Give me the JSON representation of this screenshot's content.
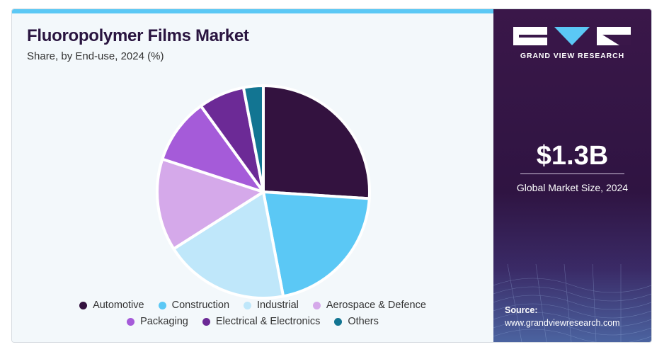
{
  "header": {
    "title": "Fluoropolymer Films Market",
    "subtitle": "Share, by End-use, 2024 (%)"
  },
  "chart_data": {
    "type": "pie",
    "title": "Fluoropolymer Films Market",
    "subtitle": "Share, by End-use, 2024 (%)",
    "categories": [
      "Automotive",
      "Construction",
      "Industrial",
      "Aerospace & Defence",
      "Packaging",
      "Electrical & Electronics",
      "Others"
    ],
    "values": [
      26,
      21,
      19,
      14,
      10,
      7,
      3
    ],
    "colors": [
      "#33123f",
      "#5bc8f5",
      "#bfe7fa",
      "#d5a9ea",
      "#a55bd9",
      "#6c2a96",
      "#127592"
    ],
    "legend_position": "bottom"
  },
  "legend": {
    "row1": [
      {
        "label": "Automotive",
        "color": "#33123f"
      },
      {
        "label": "Construction",
        "color": "#5bc8f5"
      },
      {
        "label": "Industrial",
        "color": "#bfe7fa"
      },
      {
        "label": "Aerospace & Defence",
        "color": "#d5a9ea"
      }
    ],
    "row2": [
      {
        "label": "Packaging",
        "color": "#a55bd9"
      },
      {
        "label": "Electrical & Electronics",
        "color": "#6c2a96"
      },
      {
        "label": "Others",
        "color": "#127592"
      }
    ]
  },
  "sidebar": {
    "brand": "GRAND VIEW RESEARCH",
    "market_size_value": "$1.3B",
    "market_size_label": "Global Market Size, 2024",
    "source_label": "Source:",
    "source_url": "www.grandviewresearch.com"
  }
}
